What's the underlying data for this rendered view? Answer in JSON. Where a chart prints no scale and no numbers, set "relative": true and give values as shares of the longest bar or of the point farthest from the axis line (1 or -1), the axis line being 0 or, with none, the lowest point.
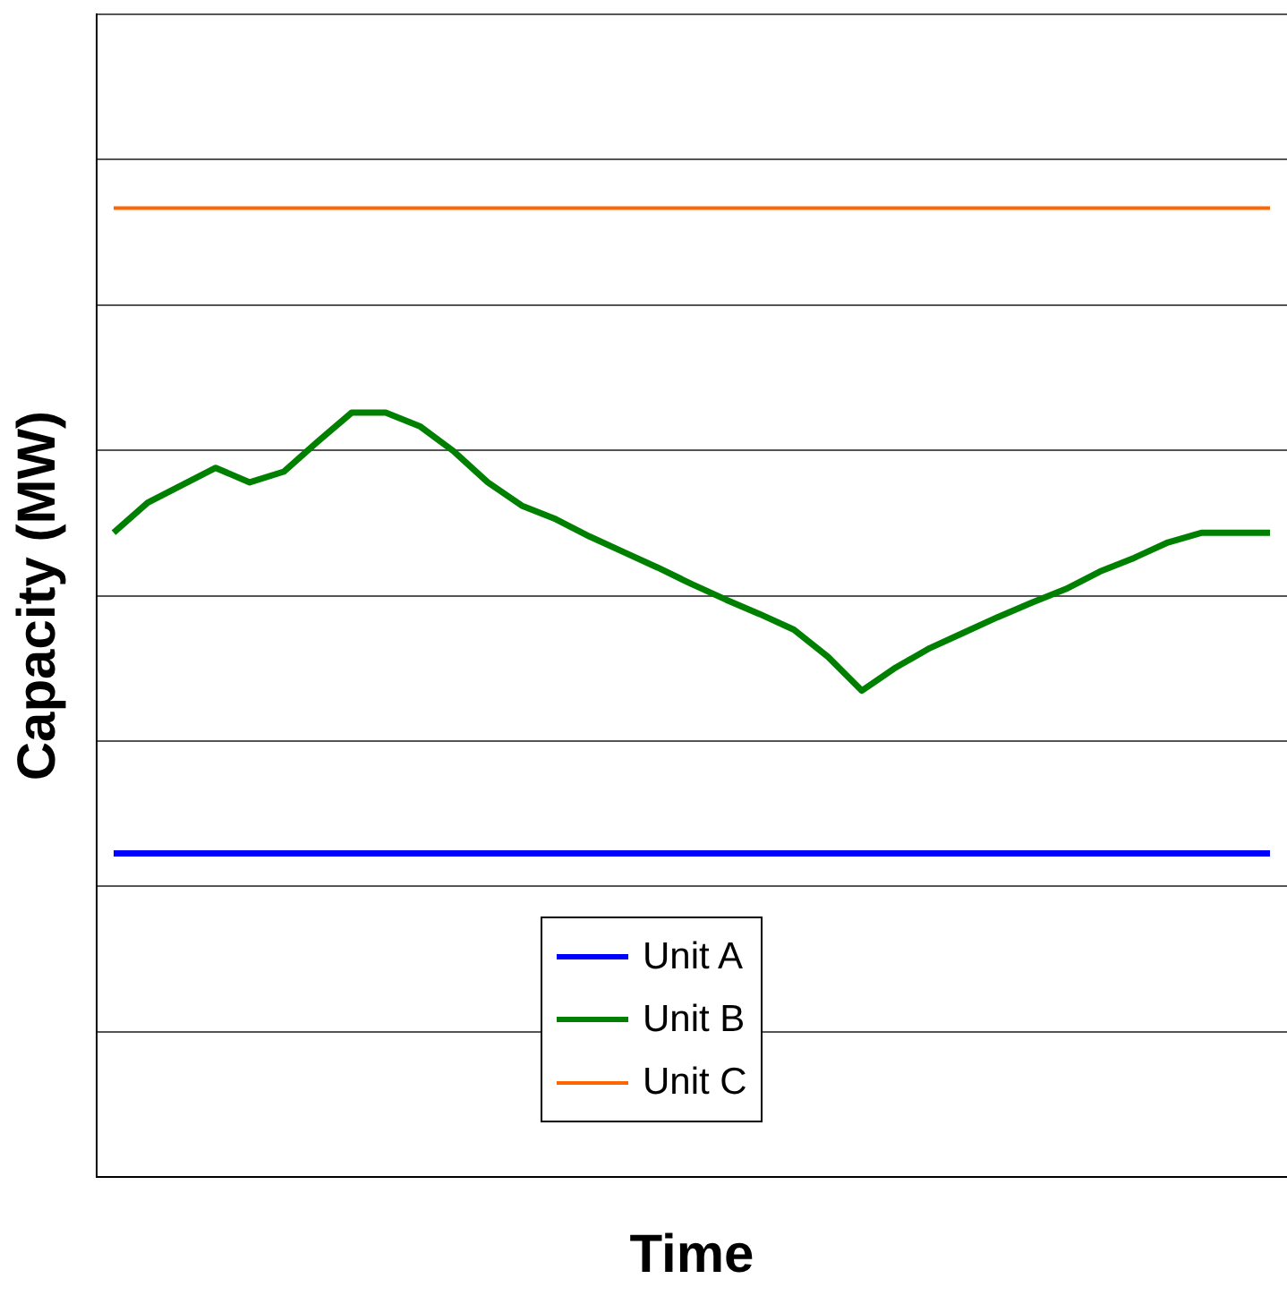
{
  "chart_data": {
    "type": "line",
    "relative": true,
    "xlabel": "Time",
    "ylabel": "Capacity (MW)",
    "grid": "y",
    "legend": "bottom",
    "marker": "none",
    "line_style": "solid",
    "categories": [
      null,
      null,
      null,
      null,
      null,
      null,
      null,
      null,
      null,
      null,
      null,
      null,
      null,
      null,
      null,
      null,
      null,
      null,
      null,
      null,
      null,
      null,
      null,
      null,
      null,
      null,
      null,
      null,
      null,
      null,
      null,
      null,
      null,
      null,
      null
    ],
    "series": [
      {
        "name": "Unit A",
        "color": "#0000ff",
        "values": [
          0.334,
          0.334,
          0.334,
          0.334,
          0.334,
          0.334,
          0.334,
          0.334,
          0.334,
          0.334,
          0.334,
          0.334,
          0.334,
          0.334,
          0.334,
          0.334,
          0.334,
          0.334,
          0.334,
          0.334,
          0.334,
          0.334,
          0.334,
          0.334,
          0.334,
          0.334,
          0.334,
          0.334,
          0.334,
          0.334,
          0.334,
          0.334,
          0.334,
          0.334,
          0.334
        ]
      },
      {
        "name": "Unit B",
        "color": "#008000",
        "values": [
          0.665,
          0.696,
          0.714,
          0.732,
          0.717,
          0.728,
          0.759,
          0.789,
          0.789,
          0.775,
          0.749,
          0.717,
          0.693,
          0.679,
          0.661,
          0.645,
          0.629,
          0.612,
          0.596,
          0.581,
          0.565,
          0.537,
          0.502,
          0.526,
          0.546,
          0.562,
          0.578,
          0.593,
          0.607,
          0.625,
          0.639,
          0.655,
          0.665,
          0.665,
          0.665
        ]
      },
      {
        "name": "Unit C",
        "color": "#ff6600",
        "values": [
          1,
          1,
          1,
          1,
          1,
          1,
          1,
          1,
          1,
          1,
          1,
          1,
          1,
          1,
          1,
          1,
          1,
          1,
          1,
          1,
          1,
          1,
          1,
          1,
          1,
          1,
          1,
          1,
          1,
          1,
          1,
          1,
          1,
          1,
          1
        ]
      }
    ]
  }
}
